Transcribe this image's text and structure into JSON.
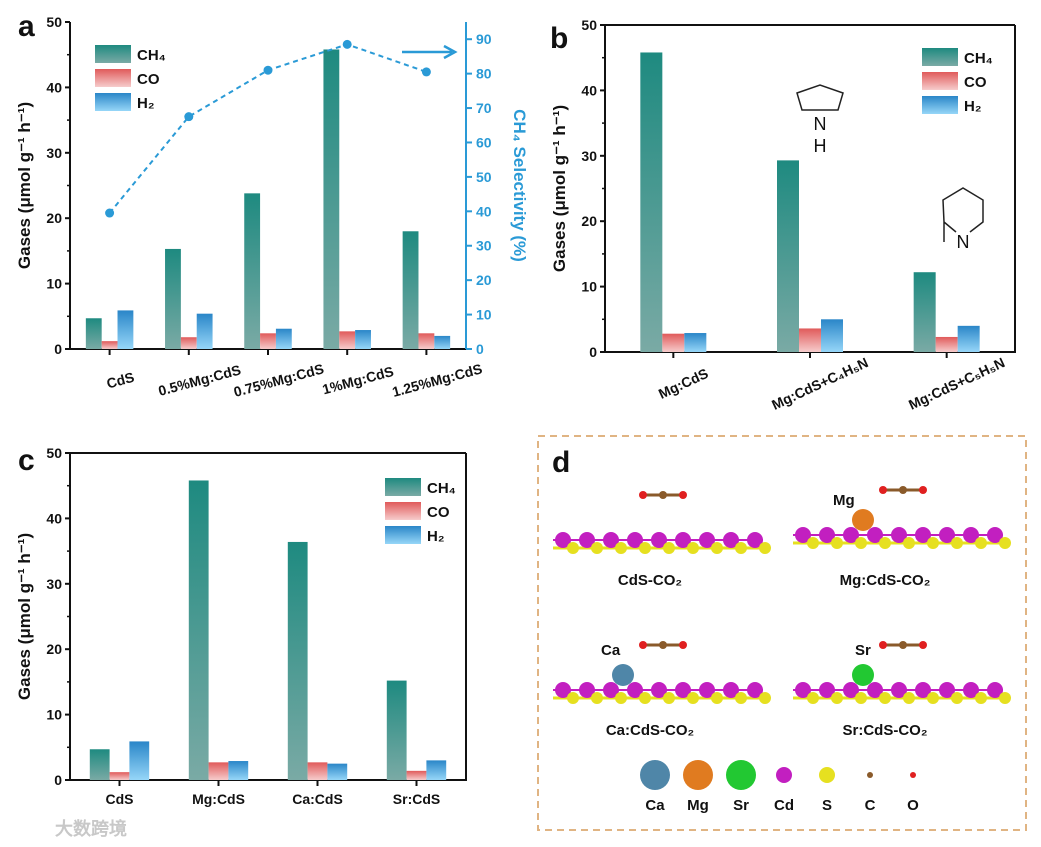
{
  "chart_data": [
    {
      "type": "bar",
      "panel": "a",
      "ylabel": "Gases (μmol g⁻¹ h⁻¹)",
      "y2label": "CH₄ Selectivity (%)",
      "ylim": [
        0,
        50
      ],
      "y2lim": [
        0,
        95
      ],
      "yticks": [
        0,
        10,
        20,
        30,
        40,
        50
      ],
      "y2ticks": [
        0,
        10,
        20,
        30,
        40,
        50,
        60,
        70,
        80,
        90
      ],
      "categories": [
        "CdS",
        "0.5%Mg:CdS",
        "0.75%Mg:CdS",
        "1%Mg:CdS",
        "1.25%Mg:CdS"
      ],
      "series": [
        {
          "name": "CH₄",
          "values": [
            4.7,
            15.3,
            23.8,
            45.8,
            18.0
          ]
        },
        {
          "name": "CO",
          "values": [
            1.2,
            1.8,
            2.4,
            2.7,
            2.4
          ]
        },
        {
          "name": "H₂",
          "values": [
            5.9,
            5.4,
            3.1,
            2.9,
            2.0
          ]
        }
      ],
      "line": {
        "name": "CH₄ Selectivity",
        "axis": "right",
        "values": [
          39.5,
          67.5,
          81.0,
          88.5,
          80.5
        ]
      },
      "legend": "top-left"
    },
    {
      "type": "bar",
      "panel": "b",
      "ylabel": "Gases (μmol g⁻¹ h⁻¹)",
      "ylim": [
        0,
        50
      ],
      "yticks": [
        0,
        10,
        20,
        30,
        40,
        50
      ],
      "categories": [
        "Mg:CdS",
        "Mg:CdS+C₄H₅N",
        "Mg:CdS+C₅H₅N"
      ],
      "series": [
        {
          "name": "CH₄",
          "values": [
            45.8,
            29.3,
            12.2
          ]
        },
        {
          "name": "CO",
          "values": [
            2.8,
            3.6,
            2.3
          ]
        },
        {
          "name": "H₂",
          "values": [
            2.9,
            5.0,
            4.0
          ]
        }
      ],
      "annotations": [
        "N",
        "H",
        "N"
      ],
      "legend": "top-right"
    },
    {
      "type": "bar",
      "panel": "c",
      "ylabel": "Gases (μmol g⁻¹ h⁻¹)",
      "ylim": [
        0,
        50
      ],
      "yticks": [
        0,
        10,
        20,
        30,
        40,
        50
      ],
      "categories": [
        "CdS",
        "Mg:CdS",
        "Ca:CdS",
        "Sr:CdS"
      ],
      "series": [
        {
          "name": "CH₄",
          "values": [
            4.7,
            45.8,
            36.4,
            15.2
          ]
        },
        {
          "name": "CO",
          "values": [
            1.2,
            2.7,
            2.7,
            1.4
          ]
        },
        {
          "name": "H₂",
          "values": [
            5.9,
            2.9,
            2.5,
            3.0
          ]
        }
      ],
      "legend": "top-right"
    }
  ],
  "panel_d": {
    "label": "d",
    "structures": [
      "CdS-CO₂",
      "Mg:CdS-CO₂",
      "Ca:CdS-CO₂",
      "Sr:CdS-CO₂"
    ],
    "atom_labels": [
      "Mg",
      "Ca",
      "Sr"
    ],
    "legend": [
      {
        "name": "Ca",
        "color": "#4f86a8"
      },
      {
        "name": "Mg",
        "color": "#e07b20"
      },
      {
        "name": "Sr",
        "color": "#22c832"
      },
      {
        "name": "Cd",
        "color": "#c21fc0"
      },
      {
        "name": "S",
        "color": "#e6e020"
      },
      {
        "name": "C",
        "color": "#8a5a2a"
      },
      {
        "name": "O",
        "color": "#e02020"
      }
    ]
  },
  "panel_labels": [
    "a",
    "b",
    "c"
  ],
  "watermark": "大数跨境",
  "colors": {
    "ch4": "#1e8a80",
    "co": "#e05a5a",
    "h2": "#2a86c8",
    "line": "#2a9ad6",
    "frame": "#e0b483"
  }
}
